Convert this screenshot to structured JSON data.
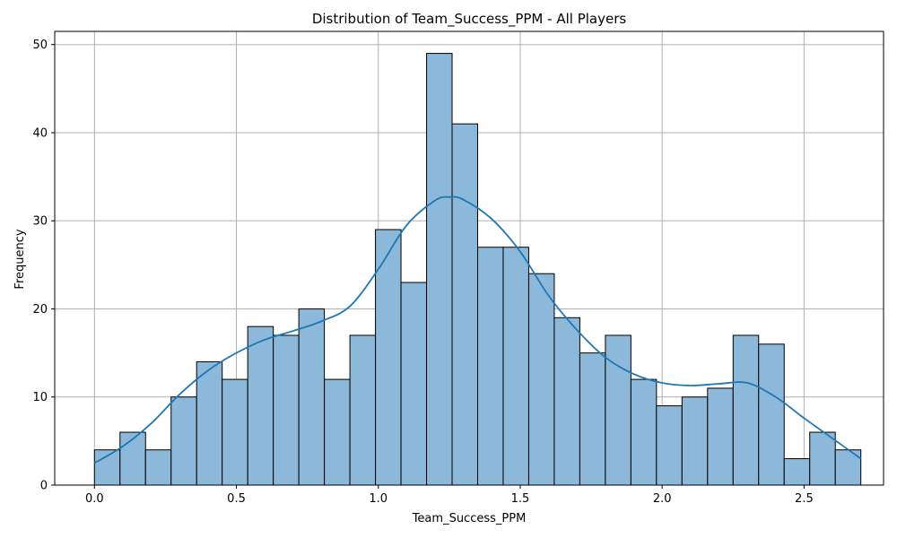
{
  "chart_data": {
    "type": "bar",
    "subtype": "histogram",
    "title": "Distribution of Team_Success_PPM - All Players",
    "xlabel": "Team_Success_PPM",
    "ylabel": "Frequency",
    "xlim": [
      -0.14,
      2.78
    ],
    "ylim": [
      0,
      51.5
    ],
    "grid": true,
    "bin_start": 0.0,
    "bin_width": 0.09,
    "values": [
      4,
      6,
      4,
      10,
      14,
      12,
      18,
      17,
      20,
      12,
      17,
      29,
      23,
      49,
      41,
      27,
      27,
      24,
      19,
      15,
      17,
      12,
      9,
      10,
      11,
      17,
      16,
      3,
      6,
      4
    ],
    "x_ticks": [
      0.0,
      0.5,
      1.0,
      1.5,
      2.0,
      2.5
    ],
    "x_tick_labels": [
      "0.0",
      "0.5",
      "1.0",
      "1.5",
      "2.0",
      "2.5"
    ],
    "y_ticks": [
      0,
      10,
      20,
      30,
      40,
      50
    ],
    "y_tick_labels": [
      "0",
      "10",
      "20",
      "30",
      "40",
      "50"
    ],
    "kde": {
      "x": [
        0.0,
        0.1,
        0.2,
        0.3,
        0.4,
        0.5,
        0.6,
        0.7,
        0.8,
        0.9,
        1.0,
        1.1,
        1.2,
        1.25,
        1.3,
        1.4,
        1.5,
        1.6,
        1.7,
        1.8,
        1.9,
        2.0,
        2.1,
        2.2,
        2.3,
        2.4,
        2.5,
        2.6,
        2.7
      ],
      "y": [
        2.5,
        4.4,
        7.0,
        10.3,
        13.0,
        15.0,
        16.5,
        17.5,
        18.6,
        20.3,
        24.5,
        29.5,
        32.3,
        32.7,
        32.4,
        30.2,
        26.5,
        21.5,
        17.6,
        14.5,
        12.6,
        11.6,
        11.3,
        11.5,
        11.6,
        10.0,
        7.6,
        5.3,
        3.0
      ]
    },
    "colors": {
      "bar_fill": "#8cb8da",
      "bar_edge": "#000000",
      "kde_line": "#1f77b4",
      "grid": "#b0b0b0"
    }
  }
}
